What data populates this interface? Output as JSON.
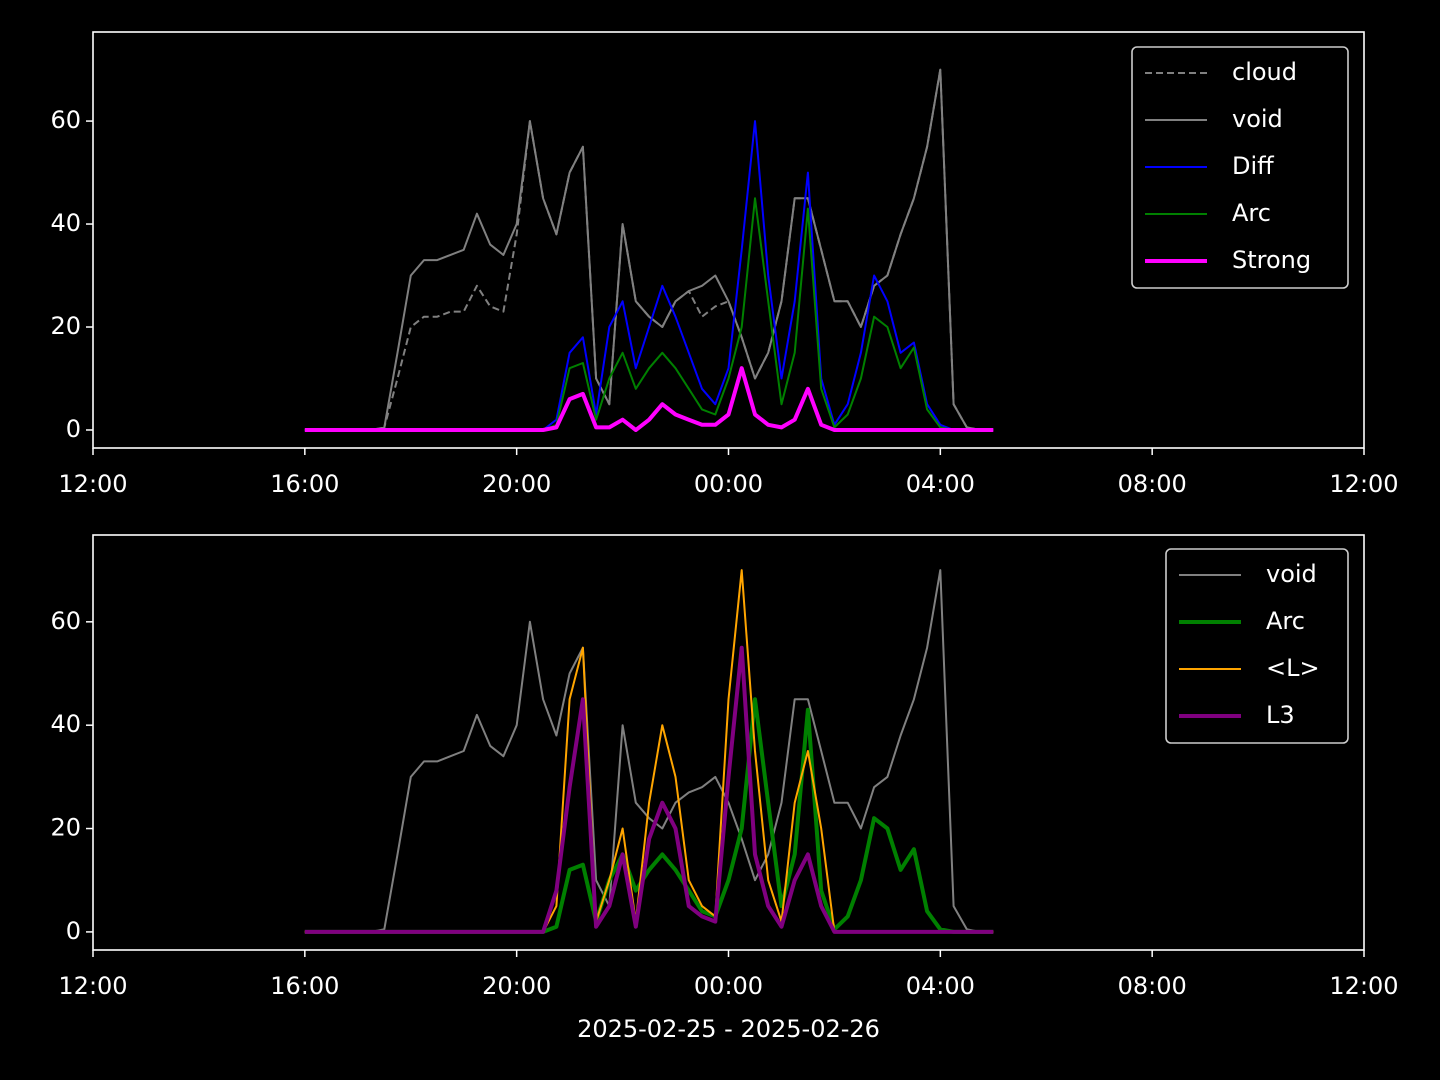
{
  "chart_data": [
    {
      "type": "line",
      "x": [
        "2025-02-25 16:00",
        "2025-02-25 16:15",
        "2025-02-25 16:30",
        "2025-02-25 16:45",
        "2025-02-25 17:00",
        "2025-02-25 17:15",
        "2025-02-25 17:30",
        "2025-02-25 17:45",
        "2025-02-25 18:00",
        "2025-02-25 18:15",
        "2025-02-25 18:30",
        "2025-02-25 18:45",
        "2025-02-25 19:00",
        "2025-02-25 19:15",
        "2025-02-25 19:30",
        "2025-02-25 19:45",
        "2025-02-25 20:00",
        "2025-02-25 20:15",
        "2025-02-25 20:30",
        "2025-02-25 20:45",
        "2025-02-25 21:00",
        "2025-02-25 21:15",
        "2025-02-25 21:30",
        "2025-02-25 21:45",
        "2025-02-25 22:00",
        "2025-02-25 22:15",
        "2025-02-25 22:30",
        "2025-02-25 22:45",
        "2025-02-25 23:00",
        "2025-02-25 23:15",
        "2025-02-25 23:30",
        "2025-02-25 23:45",
        "2025-02-26 00:00",
        "2025-02-26 00:15",
        "2025-02-26 00:30",
        "2025-02-26 00:45",
        "2025-02-26 01:00",
        "2025-02-26 01:15",
        "2025-02-26 01:30",
        "2025-02-26 01:45",
        "2025-02-26 02:00",
        "2025-02-26 02:15",
        "2025-02-26 02:30",
        "2025-02-26 02:45",
        "2025-02-26 03:00",
        "2025-02-26 03:15",
        "2025-02-26 03:30",
        "2025-02-26 03:45",
        "2025-02-26 04:00",
        "2025-02-26 04:15",
        "2025-02-26 04:30",
        "2025-02-26 04:45",
        "2025-02-26 05:00"
      ],
      "series": [
        {
          "name": "cloud",
          "color": "#808080",
          "linestyle": "dashed",
          "linewidth": 2,
          "values": [
            0,
            0,
            0,
            0,
            0,
            0,
            0.5,
            10,
            20,
            22,
            22,
            23,
            23,
            28,
            24,
            23,
            38,
            60,
            45,
            38,
            50,
            55,
            10,
            5,
            40,
            25,
            22,
            20,
            25,
            27,
            22,
            24,
            25,
            18,
            10,
            15,
            25,
            45,
            45,
            35,
            25,
            25,
            20,
            28,
            30,
            38,
            45,
            55,
            70,
            5,
            0.5,
            0,
            0
          ]
        },
        {
          "name": "void",
          "color": "#808080",
          "linewidth": 2,
          "values": [
            0,
            0,
            0,
            0,
            0,
            0,
            0.5,
            15,
            30,
            33,
            33,
            34,
            35,
            42,
            36,
            34,
            40,
            60,
            45,
            38,
            50,
            55,
            10,
            5,
            40,
            25,
            22,
            20,
            25,
            27,
            28,
            30,
            25,
            18,
            10,
            15,
            25,
            45,
            45,
            35,
            25,
            25,
            20,
            28,
            30,
            38,
            45,
            55,
            70,
            5,
            0.5,
            0,
            0
          ]
        },
        {
          "name": "Diff",
          "color": "#0000ff",
          "linewidth": 2,
          "values": [
            0,
            0,
            0,
            0,
            0,
            0,
            0,
            0,
            0,
            0,
            0,
            0,
            0,
            0,
            0,
            0,
            0,
            0,
            0,
            2,
            15,
            18,
            3,
            20,
            25,
            12,
            20,
            28,
            22,
            15,
            8,
            5,
            12,
            35,
            60,
            30,
            10,
            25,
            50,
            10,
            1,
            5,
            15,
            30,
            25,
            15,
            17,
            5,
            1,
            0,
            0,
            0,
            0
          ]
        },
        {
          "name": "Arc",
          "color": "#008000",
          "linewidth": 2,
          "values": [
            0,
            0,
            0,
            0,
            0,
            0,
            0,
            0,
            0,
            0,
            0,
            0,
            0,
            0,
            0,
            0,
            0,
            0,
            0,
            1,
            12,
            13,
            2,
            10,
            15,
            8,
            12,
            15,
            12,
            8,
            4,
            3,
            10,
            20,
            45,
            25,
            5,
            15,
            43,
            8,
            0.5,
            3,
            10,
            22,
            20,
            12,
            16,
            4,
            0.5,
            0,
            0,
            0,
            0
          ]
        },
        {
          "name": "Strong",
          "color": "#ff00ff",
          "linewidth": 4,
          "values": [
            0,
            0,
            0,
            0,
            0,
            0,
            0,
            0,
            0,
            0,
            0,
            0,
            0,
            0,
            0,
            0,
            0,
            0,
            0,
            0.5,
            6,
            7,
            0.5,
            0.5,
            2,
            0,
            2,
            5,
            3,
            2,
            1,
            1,
            3,
            12,
            3,
            1,
            0.5,
            2,
            8,
            1,
            0,
            0,
            0,
            0,
            0,
            0,
            0,
            0,
            0,
            0,
            0,
            0,
            0
          ]
        }
      ],
      "xlim": [
        "2025-02-25 12:00",
        "2025-02-26 12:00"
      ],
      "xticks": [
        {
          "value": "2025-02-25 12:00",
          "label": "12:00"
        },
        {
          "value": "2025-02-25 16:00",
          "label": "16:00"
        },
        {
          "value": "2025-02-25 20:00",
          "label": "20:00"
        },
        {
          "value": "2025-02-26 00:00",
          "label": "00:00"
        },
        {
          "value": "2025-02-26 04:00",
          "label": "04:00"
        },
        {
          "value": "2025-02-26 08:00",
          "label": "08:00"
        },
        {
          "value": "2025-02-26 12:00",
          "label": "12:00"
        }
      ],
      "ylim": [
        -3.5,
        77.3
      ],
      "yticks": [
        0,
        20,
        40,
        60
      ],
      "legend": "upper right"
    },
    {
      "type": "line",
      "x": [
        "2025-02-25 16:00",
        "2025-02-25 16:15",
        "2025-02-25 16:30",
        "2025-02-25 16:45",
        "2025-02-25 17:00",
        "2025-02-25 17:15",
        "2025-02-25 17:30",
        "2025-02-25 17:45",
        "2025-02-25 18:00",
        "2025-02-25 18:15",
        "2025-02-25 18:30",
        "2025-02-25 18:45",
        "2025-02-25 19:00",
        "2025-02-25 19:15",
        "2025-02-25 19:30",
        "2025-02-25 19:45",
        "2025-02-25 20:00",
        "2025-02-25 20:15",
        "2025-02-25 20:30",
        "2025-02-25 20:45",
        "2025-02-25 21:00",
        "2025-02-25 21:15",
        "2025-02-25 21:30",
        "2025-02-25 21:45",
        "2025-02-25 22:00",
        "2025-02-25 22:15",
        "2025-02-25 22:30",
        "2025-02-25 22:45",
        "2025-02-25 23:00",
        "2025-02-25 23:15",
        "2025-02-25 23:30",
        "2025-02-25 23:45",
        "2025-02-26 00:00",
        "2025-02-26 00:15",
        "2025-02-26 00:30",
        "2025-02-26 00:45",
        "2025-02-26 01:00",
        "2025-02-26 01:15",
        "2025-02-26 01:30",
        "2025-02-26 01:45",
        "2025-02-26 02:00",
        "2025-02-26 02:15",
        "2025-02-26 02:30",
        "2025-02-26 02:45",
        "2025-02-26 03:00",
        "2025-02-26 03:15",
        "2025-02-26 03:30",
        "2025-02-26 03:45",
        "2025-02-26 04:00",
        "2025-02-26 04:15",
        "2025-02-26 04:30",
        "2025-02-26 04:45",
        "2025-02-26 05:00"
      ],
      "series": [
        {
          "name": "void",
          "color": "#808080",
          "linewidth": 2,
          "values": [
            0,
            0,
            0,
            0,
            0,
            0,
            0.5,
            15,
            30,
            33,
            33,
            34,
            35,
            42,
            36,
            34,
            40,
            60,
            45,
            38,
            50,
            55,
            10,
            5,
            40,
            25,
            22,
            20,
            25,
            27,
            28,
            30,
            25,
            18,
            10,
            15,
            25,
            45,
            45,
            35,
            25,
            25,
            20,
            28,
            30,
            38,
            45,
            55,
            70,
            5,
            0.5,
            0,
            0
          ]
        },
        {
          "name": "Arc",
          "color": "#008000",
          "linewidth": 4,
          "values": [
            0,
            0,
            0,
            0,
            0,
            0,
            0,
            0,
            0,
            0,
            0,
            0,
            0,
            0,
            0,
            0,
            0,
            0,
            0,
            1,
            12,
            13,
            2,
            10,
            15,
            8,
            12,
            15,
            12,
            8,
            4,
            3,
            10,
            20,
            45,
            25,
            5,
            15,
            43,
            8,
            0.5,
            3,
            10,
            22,
            20,
            12,
            16,
            4,
            0.5,
            0,
            0,
            0,
            0
          ]
        },
        {
          "name": "<L>",
          "color": "#ffa500",
          "linewidth": 2,
          "values": [
            0,
            0,
            0,
            0,
            0,
            0,
            0,
            0,
            0,
            0,
            0,
            0,
            0,
            0,
            0,
            0,
            0,
            0,
            0,
            5,
            45,
            55,
            2,
            10,
            20,
            2,
            25,
            40,
            30,
            10,
            5,
            3,
            45,
            70,
            35,
            10,
            2,
            25,
            35,
            20,
            0,
            0,
            0,
            0,
            0,
            0,
            0,
            0,
            0,
            0,
            0,
            0,
            0
          ]
        },
        {
          "name": "L3",
          "color": "#800080",
          "linewidth": 4,
          "values": [
            0,
            0,
            0,
            0,
            0,
            0,
            0,
            0,
            0,
            0,
            0,
            0,
            0,
            0,
            0,
            0,
            0,
            0,
            0,
            8,
            28,
            45,
            1,
            5,
            15,
            1,
            18,
            25,
            20,
            5,
            3,
            2,
            30,
            55,
            15,
            5,
            1,
            10,
            15,
            5,
            0,
            0,
            0,
            0,
            0,
            0,
            0,
            0,
            0,
            0,
            0,
            0,
            0
          ]
        }
      ],
      "xlim": [
        "2025-02-25 12:00",
        "2025-02-26 12:00"
      ],
      "xticks": [
        {
          "value": "2025-02-25 12:00",
          "label": "12:00"
        },
        {
          "value": "2025-02-25 16:00",
          "label": "16:00"
        },
        {
          "value": "2025-02-25 20:00",
          "label": "20:00"
        },
        {
          "value": "2025-02-26 00:00",
          "label": "00:00"
        },
        {
          "value": "2025-02-26 04:00",
          "label": "04:00"
        },
        {
          "value": "2025-02-26 08:00",
          "label": "08:00"
        },
        {
          "value": "2025-02-26 12:00",
          "label": "12:00"
        }
      ],
      "ylim": [
        -3.5,
        76.8
      ],
      "yticks": [
        0,
        20,
        40,
        60
      ],
      "legend": "upper right",
      "xlabel": "2025-02-25 - 2025-02-26"
    }
  ]
}
